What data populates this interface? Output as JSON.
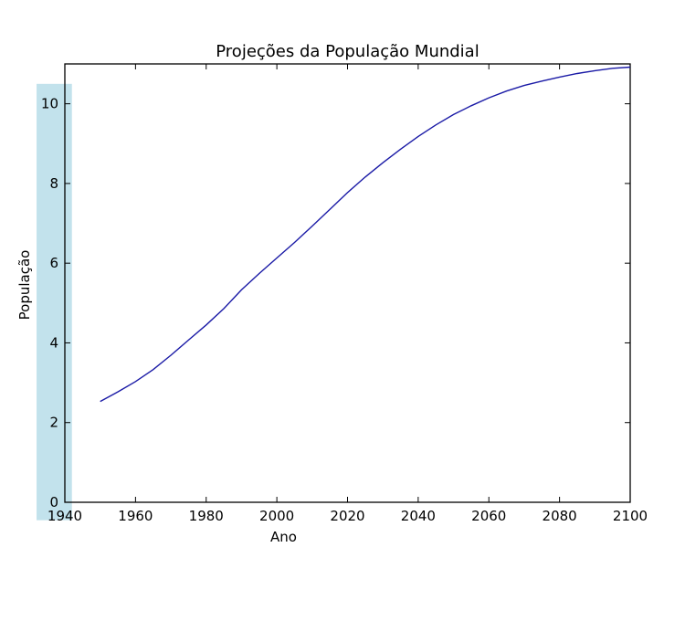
{
  "chart_data": {
    "type": "line",
    "title": "Projeções da População Mundial",
    "xlabel": "Ano",
    "ylabel": "População",
    "xlim": [
      1940,
      2100
    ],
    "ylim": [
      0,
      11
    ],
    "x_ticks": [
      1940,
      1960,
      1980,
      2000,
      2020,
      2040,
      2060,
      2080,
      2100
    ],
    "y_ticks": [
      0,
      2,
      4,
      6,
      8,
      10
    ],
    "x_tick_labels": [
      "1940",
      "1960",
      "1980",
      "2000",
      "2020",
      "2040",
      "2060",
      "2080",
      "2100"
    ],
    "y_tick_labels": [
      "0",
      "2",
      "4",
      "6",
      "8",
      "10"
    ],
    "grid": false,
    "series": [
      {
        "color": "#1a1aa6",
        "x": [
          1950,
          1955,
          1960,
          1965,
          1970,
          1975,
          1980,
          1985,
          1990,
          1995,
          2000,
          2005,
          2010,
          2015,
          2020,
          2025,
          2030,
          2035,
          2040,
          2045,
          2050,
          2055,
          2060,
          2065,
          2070,
          2075,
          2080,
          2085,
          2090,
          2095,
          2100
        ],
        "y": [
          2.53,
          2.77,
          3.03,
          3.33,
          3.69,
          4.07,
          4.45,
          4.86,
          5.33,
          5.74,
          6.13,
          6.52,
          6.93,
          7.35,
          7.77,
          8.16,
          8.52,
          8.86,
          9.18,
          9.47,
          9.73,
          9.95,
          10.15,
          10.32,
          10.46,
          10.57,
          10.67,
          10.76,
          10.83,
          10.89,
          10.92
        ]
      }
    ],
    "highlight": {
      "x_range": [
        1932,
        1942
      ],
      "y_range": [
        -0.45,
        10.5
      ],
      "color": "#add8e6"
    }
  }
}
